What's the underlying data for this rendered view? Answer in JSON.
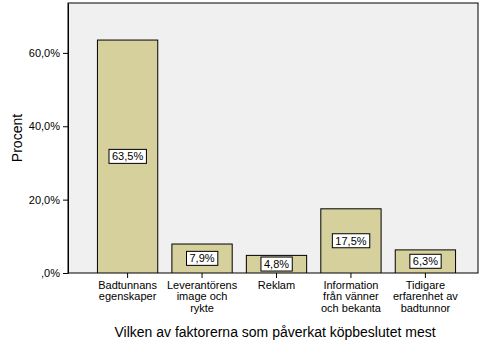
{
  "chart_data": {
    "type": "bar",
    "x_label": "Vilken av faktorerna som påverkat köpbeslutet mest",
    "y_label": "Procent",
    "categories": [
      "Badtunnans egenskaper",
      "Leverantörens image och rykte",
      "Reklam",
      "Information från vänner och bekanta",
      "Tidigare erfarenhet av badtunnor"
    ],
    "values": [
      63.5,
      7.9,
      4.8,
      17.5,
      6.3
    ],
    "value_labels": [
      "63,5%",
      "7,9%",
      "4,8%",
      "17,5%",
      "6,3%"
    ],
    "data_labels": true,
    "color": "#d6d09d",
    "ylim": [
      0,
      73.6
    ],
    "yticks": [
      {
        "value": 0,
        "label": ",0%"
      },
      {
        "value": 20,
        "label": "20,0%"
      },
      {
        "value": 40,
        "label": "40,0%"
      },
      {
        "value": 60,
        "label": "60,0%"
      }
    ],
    "grid": false
  }
}
